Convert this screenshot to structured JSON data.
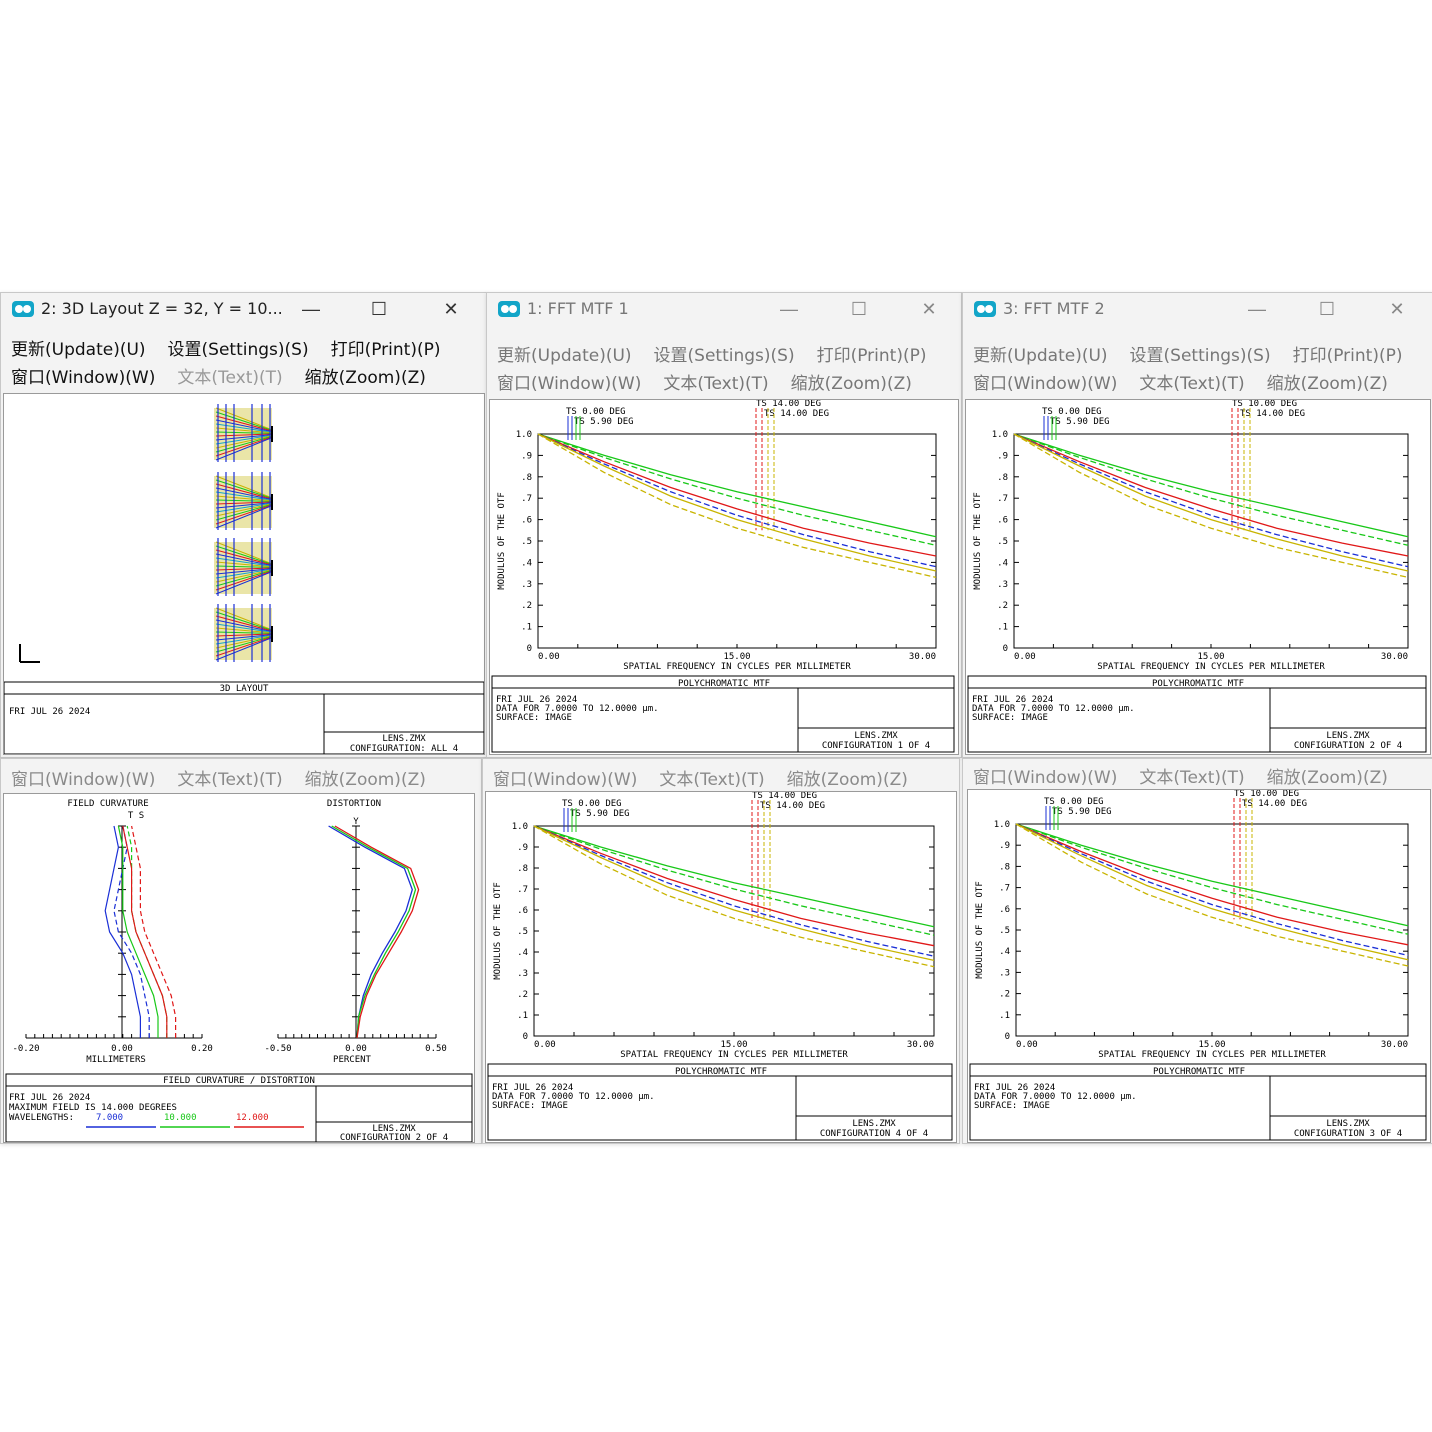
{
  "menus": {
    "update": "更新(Update)(U)",
    "settings": "设置(Settings)(S)",
    "print": "打印(Print)(P)",
    "window": "窗口(Window)(W)",
    "text": "文本(Text)(T)",
    "zoom": "缩放(Zoom)(Z)"
  },
  "controls": {
    "minimize": "—",
    "maximize": "☐",
    "close": "✕"
  },
  "colors": {
    "blue": "#1a2fd6",
    "green": "#18c818",
    "red": "#e01818",
    "yellow": "#c8b400"
  },
  "layout3d": {
    "title": "2: 3D Layout Z = 32, Y = 10...",
    "caption": "3D LAYOUT",
    "date": "FRI JUL 26 2024",
    "file": "LENS.ZMX",
    "config": "CONFIGURATION: ALL 4"
  },
  "fieldcurv": {
    "title_left": "FIELD CURVATURE",
    "title_right": "DISTORTION",
    "ts_label": "T S",
    "y_label": "Y",
    "left_ticks": [
      "-0.20",
      "0.00",
      "0.20"
    ],
    "left_axis": "MILLIMETERS",
    "right_ticks": [
      "-0.50",
      "0.00",
      "0.50"
    ],
    "right_axis": "PERCENT",
    "caption": "FIELD CURVATURE / DISTORTION",
    "date": "FRI JUL 26 2024",
    "maxfield": "MAXIMUM FIELD IS 14.000 DEGREES",
    "wavelengths_label": "WAVELENGTHS:",
    "wl": [
      "7.000",
      "10.000",
      "12.000"
    ],
    "file": "LENS.ZMX",
    "config": "CONFIGURATION 2 OF 4"
  },
  "mtf_windows": [
    {
      "title": "1: FFT MTF 1",
      "y_axis_label": "MODULUS OF THE OTF",
      "x_axis_label": "SPATIAL FREQUENCY IN CYCLES PER MILLIMETER",
      "yticks": [
        "1.0",
        ".9",
        ".8",
        ".7",
        ".6",
        ".5",
        ".4",
        ".3",
        ".2",
        ".1",
        "0"
      ],
      "xticks": [
        "0.00",
        "15.00",
        "30.00"
      ],
      "field_labels": [
        "TS 0.00 DEG",
        "TS 5.90 DEG",
        "TS 14.00 DEG",
        "TS 14.00 DEG"
      ],
      "caption": "POLYCHROMATIC MTF",
      "date": "FRI JUL 26 2024",
      "data": "DATA FOR 7.0000 TO 12.0000 μm.",
      "surface": "SURFACE: IMAGE",
      "file": "LENS.ZMX",
      "config": "CONFIGURATION 1 OF 4"
    },
    {
      "title": "3: FFT MTF 2",
      "y_axis_label": "MODULUS OF THE OTF",
      "x_axis_label": "SPATIAL FREQUENCY IN CYCLES PER MILLIMETER",
      "yticks": [
        "1.0",
        ".9",
        ".8",
        ".7",
        ".6",
        ".5",
        ".4",
        ".3",
        ".2",
        ".1",
        "0"
      ],
      "xticks": [
        "0.00",
        "15.00",
        "30.00"
      ],
      "field_labels": [
        "TS 0.00 DEG",
        "TS 5.90 DEG",
        "TS 10.00 DEG",
        "TS 14.00 DEG"
      ],
      "caption": "POLYCHROMATIC MTF",
      "date": "FRI JUL 26 2024",
      "data": "DATA FOR 7.0000 TO 12.0000 μm.",
      "surface": "SURFACE: IMAGE",
      "file": "LENS.ZMX",
      "config": "CONFIGURATION 2 OF 4"
    },
    {
      "title": "",
      "y_axis_label": "MODULUS OF THE OTF",
      "x_axis_label": "SPATIAL FREQUENCY IN CYCLES PER MILLIMETER",
      "yticks": [
        "1.0",
        ".9",
        ".8",
        ".7",
        ".6",
        ".5",
        ".4",
        ".3",
        ".2",
        ".1",
        "0"
      ],
      "xticks": [
        "0.00",
        "15.00",
        "30.00"
      ],
      "field_labels": [
        "TS 0.00 DEG",
        "TS 5.90 DEG",
        "TS 14.00 DEG",
        "TS 14.00 DEG"
      ],
      "caption": "POLYCHROMATIC MTF",
      "date": "FRI JUL 26 2024",
      "data": "DATA FOR 7.0000 TO 12.0000 μm.",
      "surface": "SURFACE: IMAGE",
      "file": "LENS.ZMX",
      "config": "CONFIGURATION 4 OF 4"
    },
    {
      "title": "",
      "y_axis_label": "MODULUS OF THE OTF",
      "x_axis_label": "SPATIAL FREQUENCY IN CYCLES PER MILLIMETER",
      "yticks": [
        "1.0",
        ".9",
        ".8",
        ".7",
        ".6",
        ".5",
        ".4",
        ".3",
        ".2",
        ".1",
        "0"
      ],
      "xticks": [
        "0.00",
        "15.00",
        "30.00"
      ],
      "field_labels": [
        "TS 0.00 DEG",
        "TS 5.90 DEG",
        "TS 10.00 DEG",
        "TS 14.00 DEG"
      ],
      "caption": "POLYCHROMATIC MTF",
      "date": "FRI JUL 26 2024",
      "data": "DATA FOR 7.0000 TO 12.0000 μm.",
      "surface": "SURFACE: IMAGE",
      "file": "LENS.ZMX",
      "config": "CONFIGURATION 3 OF 4"
    }
  ],
  "chart_data": [
    {
      "type": "line",
      "title": "POLYCHROMATIC MTF",
      "xlabel": "SPATIAL FREQUENCY IN CYCLES PER MILLIMETER",
      "ylabel": "MODULUS OF THE OTF",
      "xlim": [
        0,
        30
      ],
      "ylim": [
        0,
        1
      ],
      "x": [
        0,
        5,
        10,
        15,
        20,
        25,
        30
      ],
      "series": [
        {
          "color": "#18c818",
          "values": [
            1.0,
            0.9,
            0.81,
            0.73,
            0.66,
            0.59,
            0.52
          ]
        },
        {
          "color": "#18c818",
          "values": [
            1.0,
            0.89,
            0.79,
            0.7,
            0.62,
            0.55,
            0.48
          ]
        },
        {
          "color": "#e01818",
          "values": [
            1.0,
            0.87,
            0.75,
            0.65,
            0.56,
            0.49,
            0.43
          ]
        },
        {
          "color": "#1a2fd6",
          "values": [
            1.0,
            0.86,
            0.73,
            0.62,
            0.53,
            0.45,
            0.38
          ]
        },
        {
          "color": "#c8b400",
          "values": [
            1.0,
            0.85,
            0.71,
            0.6,
            0.51,
            0.43,
            0.36
          ]
        },
        {
          "color": "#c8b400",
          "values": [
            1.0,
            0.82,
            0.67,
            0.56,
            0.47,
            0.4,
            0.33
          ]
        }
      ]
    },
    {
      "type": "line",
      "title": "FIELD CURVATURE",
      "xlabel": "MILLIMETERS",
      "xlim": [
        -0.2,
        0.2
      ],
      "y": [
        0,
        0.1,
        0.2,
        0.3,
        0.4,
        0.5,
        0.6,
        0.7,
        0.8,
        0.9,
        1.0
      ],
      "series": [
        {
          "color": "#1a2fd6",
          "values": [
            0.06,
            0.06,
            0.05,
            0.04,
            0.02,
            -0.01,
            -0.02,
            -0.01,
            0.0,
            0.01,
            0.0
          ]
        },
        {
          "color": "#18c818",
          "values": [
            0.1,
            0.1,
            0.09,
            0.07,
            0.05,
            0.03,
            0.02,
            0.02,
            0.02,
            0.02,
            0.01
          ]
        },
        {
          "color": "#e01818",
          "values": [
            0.12,
            0.12,
            0.11,
            0.09,
            0.07,
            0.05,
            0.04,
            0.04,
            0.04,
            0.03,
            0.02
          ]
        }
      ]
    },
    {
      "type": "line",
      "title": "DISTORTION",
      "xlabel": "PERCENT",
      "xlim": [
        -0.5,
        0.5
      ],
      "y": [
        0,
        0.1,
        0.2,
        0.3,
        0.4,
        0.5,
        0.6,
        0.7,
        0.8,
        0.9,
        1.0
      ],
      "series": [
        {
          "color": "#1a2fd6",
          "values": [
            0.0,
            0.01,
            0.04,
            0.09,
            0.16,
            0.24,
            0.31,
            0.35,
            0.3,
            0.05,
            -0.18
          ]
        },
        {
          "color": "#18c818",
          "values": [
            0.0,
            0.01,
            0.05,
            0.11,
            0.18,
            0.26,
            0.33,
            0.37,
            0.32,
            0.07,
            -0.16
          ]
        },
        {
          "color": "#e01818",
          "values": [
            0.0,
            0.02,
            0.06,
            0.12,
            0.2,
            0.28,
            0.35,
            0.39,
            0.34,
            0.09,
            -0.14
          ]
        }
      ]
    }
  ]
}
